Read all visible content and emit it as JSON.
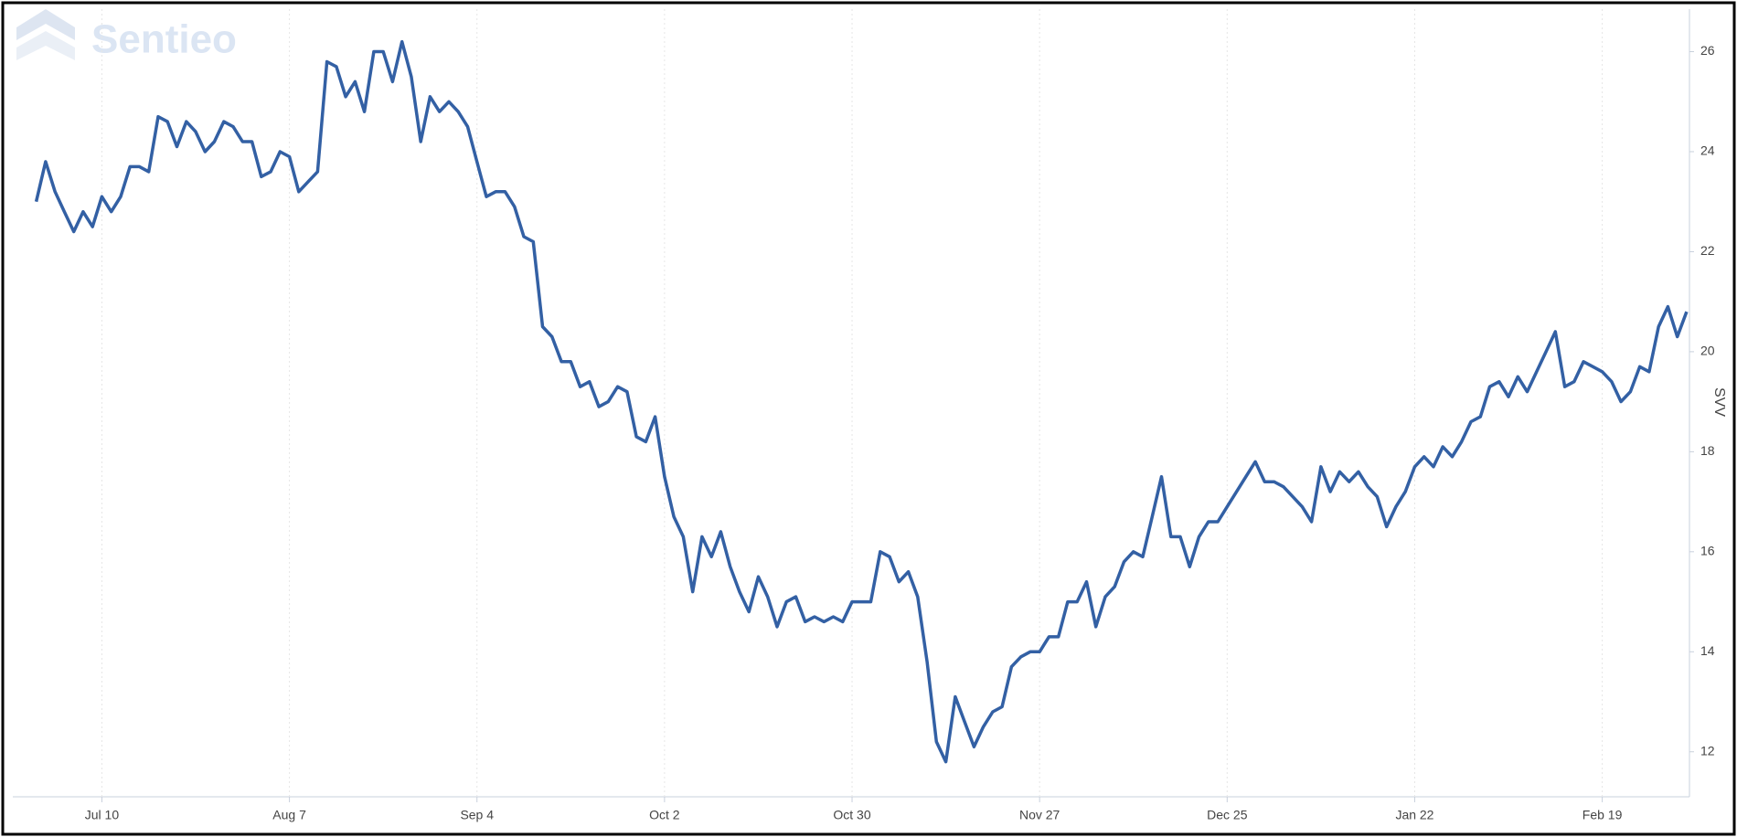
{
  "watermark": "Sentieo",
  "chart_data": {
    "type": "line",
    "y_label": "SVV",
    "color": "#3360a4",
    "grid": true,
    "y_axis_side": "right",
    "values": [
      23.0,
      23.8,
      23.2,
      22.8,
      22.4,
      22.8,
      22.5,
      23.1,
      22.8,
      23.1,
      23.7,
      23.7,
      23.6,
      24.7,
      24.6,
      24.1,
      24.6,
      24.4,
      24.0,
      24.2,
      24.6,
      24.5,
      24.2,
      24.2,
      23.5,
      23.6,
      24.0,
      23.9,
      23.2,
      23.4,
      23.6,
      25.8,
      25.7,
      25.1,
      25.4,
      24.8,
      26.0,
      26.0,
      25.4,
      26.2,
      25.5,
      24.2,
      25.1,
      24.8,
      25.0,
      24.8,
      24.5,
      23.8,
      23.1,
      23.2,
      23.2,
      22.9,
      22.3,
      22.2,
      20.5,
      20.3,
      19.8,
      19.8,
      19.3,
      19.4,
      18.9,
      19.0,
      19.3,
      19.2,
      18.3,
      18.2,
      18.7,
      17.5,
      16.7,
      16.3,
      15.2,
      16.3,
      15.9,
      16.4,
      15.7,
      15.2,
      14.8,
      15.5,
      15.1,
      14.5,
      15.0,
      15.1,
      14.6,
      14.7,
      14.6,
      14.7,
      14.6,
      15.0,
      15.0,
      15.0,
      16.0,
      15.9,
      15.4,
      15.6,
      15.1,
      13.8,
      12.2,
      11.8,
      13.1,
      12.6,
      12.1,
      12.5,
      12.8,
      12.9,
      13.7,
      13.9,
      14.0,
      14.0,
      14.3,
      14.3,
      15.0,
      15.0,
      15.4,
      14.5,
      15.1,
      15.3,
      15.8,
      16.0,
      15.9,
      16.7,
      17.5,
      16.3,
      16.3,
      15.7,
      16.3,
      16.6,
      16.6,
      16.9,
      17.2,
      17.5,
      17.8,
      17.4,
      17.4,
      17.3,
      17.1,
      16.9,
      16.6,
      17.7,
      17.2,
      17.6,
      17.4,
      17.6,
      17.3,
      17.1,
      16.5,
      16.9,
      17.2,
      17.7,
      17.9,
      17.7,
      18.1,
      17.9,
      18.2,
      18.6,
      18.7,
      19.3,
      19.4,
      19.1,
      19.5,
      19.2,
      19.6,
      20.0,
      20.4,
      19.3,
      19.4,
      19.8,
      19.7,
      19.6,
      19.4,
      19.0,
      19.2,
      19.7,
      19.6,
      20.5,
      20.9,
      20.3,
      20.8
    ],
    "xlim": [
      -2.5,
      176.3
    ],
    "xticks": [
      {
        "value": 7,
        "label": "Jul 10"
      },
      {
        "value": 27,
        "label": "Aug 7"
      },
      {
        "value": 47,
        "label": "Sep 4"
      },
      {
        "value": 67,
        "label": "Oct 2"
      },
      {
        "value": 87,
        "label": "Oct 30"
      },
      {
        "value": 107,
        "label": "Nov 27"
      },
      {
        "value": 127,
        "label": "Dec 25"
      },
      {
        "value": 147,
        "label": "Jan 22"
      },
      {
        "value": 167,
        "label": "Feb 19"
      }
    ],
    "ylim": [
      11.1,
      26.85
    ],
    "yticks": [
      12,
      14,
      16,
      18,
      20,
      22,
      24,
      26
    ]
  }
}
